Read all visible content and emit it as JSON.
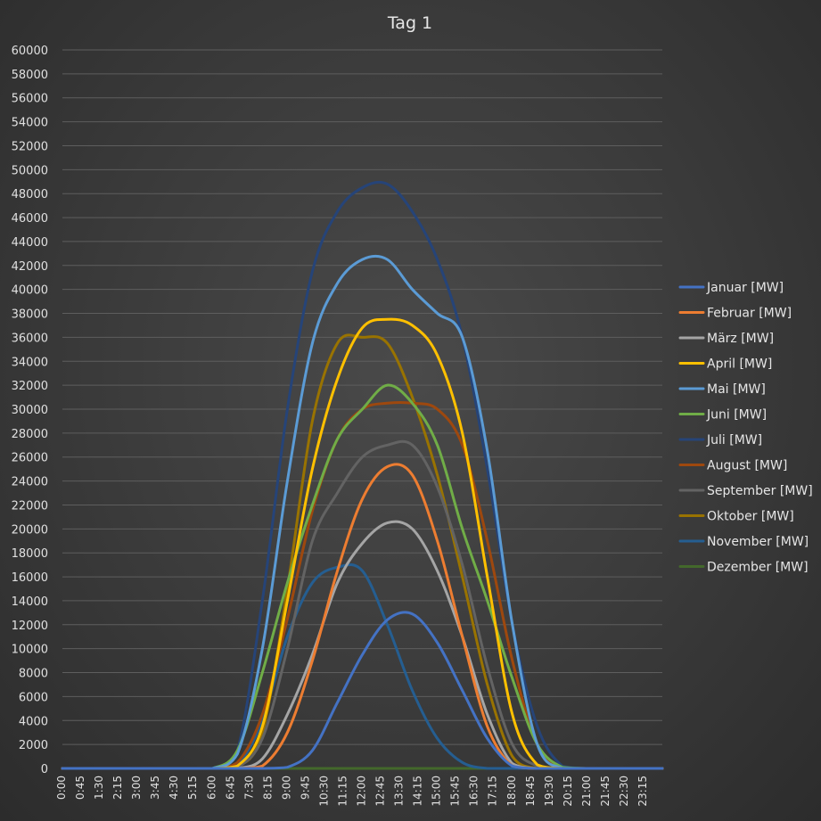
{
  "chart_data": {
    "type": "line",
    "title": "Tag 1",
    "xlabel": "",
    "ylabel": "",
    "ylim": [
      0,
      60000
    ],
    "yticks": [
      0,
      2000,
      4000,
      6000,
      8000,
      10000,
      12000,
      14000,
      16000,
      18000,
      20000,
      22000,
      24000,
      26000,
      28000,
      30000,
      32000,
      34000,
      36000,
      38000,
      40000,
      42000,
      44000,
      46000,
      48000,
      50000,
      52000,
      54000,
      56000,
      58000,
      60000
    ],
    "x_tick_labels": [
      "0:00",
      "0:45",
      "1:30",
      "2:15",
      "3:00",
      "3:45",
      "4:30",
      "5:15",
      "6:00",
      "6:45",
      "7:30",
      "8:15",
      "9:00",
      "9:45",
      "10:30",
      "11:15",
      "12:00",
      "12:45",
      "13:30",
      "14:15",
      "15:00",
      "15:45",
      "16:30",
      "17:15",
      "18:00",
      "18:45",
      "19:30",
      "20:15",
      "21:00",
      "21:45",
      "22:30",
      "23:15"
    ],
    "x_hours": [
      0,
      1,
      2,
      3,
      4,
      5,
      6,
      7,
      8,
      9,
      10,
      11,
      12,
      13,
      14,
      15,
      16,
      17,
      18,
      19,
      20,
      21,
      22,
      23,
      24
    ],
    "grid": true,
    "legend_position": "right",
    "series": [
      {
        "name": "Januar [MW]",
        "color": "#4472c4",
        "values": [
          0,
          0,
          0,
          0,
          0,
          0,
          0,
          0,
          0,
          100,
          1500,
          5500,
          9500,
          12400,
          12900,
          10500,
          6500,
          2500,
          200,
          0,
          0,
          0,
          0,
          0,
          0
        ]
      },
      {
        "name": "Februar [MW]",
        "color": "#ed7d31",
        "values": [
          0,
          0,
          0,
          0,
          0,
          0,
          0,
          0,
          200,
          3000,
          9000,
          16500,
          22500,
          25200,
          24500,
          19000,
          11000,
          3500,
          200,
          0,
          0,
          0,
          0,
          0,
          0
        ]
      },
      {
        "name": "März [MW]",
        "color": "#a5a5a5",
        "values": [
          0,
          0,
          0,
          0,
          0,
          0,
          0,
          0,
          800,
          4500,
          9500,
          15500,
          18800,
          20500,
          20000,
          16500,
          11000,
          4500,
          400,
          0,
          0,
          0,
          0,
          0,
          0
        ]
      },
      {
        "name": "April [MW]",
        "color": "#ffc000",
        "values": [
          0,
          0,
          0,
          0,
          0,
          0,
          0,
          200,
          3500,
          14000,
          25000,
          32500,
          36800,
          37500,
          37000,
          34500,
          28000,
          16000,
          4500,
          300,
          0,
          0,
          0,
          0,
          0
        ]
      },
      {
        "name": "Mai [MW]",
        "color": "#5b9bd5",
        "values": [
          0,
          0,
          0,
          0,
          0,
          0,
          0,
          1200,
          10000,
          24000,
          35500,
          40500,
          42500,
          42500,
          40000,
          38000,
          36000,
          26500,
          12000,
          2000,
          0,
          0,
          0,
          0,
          0
        ]
      },
      {
        "name": "Juni [MW]",
        "color": "#70ad47",
        "values": [
          0,
          0,
          0,
          0,
          0,
          0,
          0,
          1500,
          8000,
          15500,
          22000,
          27500,
          30000,
          32000,
          30500,
          27000,
          20000,
          14000,
          7500,
          2000,
          100,
          0,
          0,
          0,
          0
        ]
      },
      {
        "name": "Juli [MW]",
        "color": "#264478",
        "values": [
          0,
          0,
          0,
          0,
          0,
          0,
          0,
          1500,
          14000,
          30000,
          41500,
          46500,
          48500,
          48800,
          46500,
          42500,
          36000,
          25000,
          12000,
          3500,
          200,
          0,
          0,
          0,
          0
        ]
      },
      {
        "name": "August [MW]",
        "color": "#9e480e",
        "values": [
          0,
          0,
          0,
          0,
          0,
          0,
          0,
          500,
          4500,
          12500,
          21500,
          27500,
          30000,
          30500,
          30500,
          30000,
          27000,
          19000,
          9000,
          2000,
          100,
          0,
          0,
          0,
          0
        ]
      },
      {
        "name": "September [MW]",
        "color": "#636363",
        "values": [
          0,
          0,
          0,
          0,
          0,
          0,
          0,
          100,
          2500,
          10000,
          19000,
          23000,
          26000,
          27000,
          27000,
          23500,
          17000,
          8500,
          2000,
          200,
          0,
          0,
          0,
          0,
          0
        ]
      },
      {
        "name": "Oktober [MW]",
        "color": "#997300",
        "values": [
          0,
          0,
          0,
          0,
          0,
          0,
          0,
          100,
          3000,
          15000,
          29000,
          35500,
          36000,
          35500,
          31000,
          24500,
          16000,
          7000,
          1000,
          0,
          0,
          0,
          0,
          0,
          0
        ]
      },
      {
        "name": "November [MW]",
        "color": "#255e91",
        "values": [
          0,
          0,
          0,
          0,
          0,
          0,
          0,
          300,
          4000,
          11000,
          15500,
          16800,
          16500,
          12000,
          6500,
          2500,
          500,
          0,
          0,
          0,
          0,
          0,
          0,
          0,
          0
        ]
      },
      {
        "name": "Dezember [MW]",
        "color": "#43682b",
        "values": [
          0,
          0,
          0,
          0,
          0,
          0,
          0,
          0,
          0,
          0,
          0,
          0,
          0,
          0,
          0,
          0,
          0,
          0,
          0,
          0,
          0,
          0,
          0,
          0,
          0
        ]
      }
    ]
  }
}
